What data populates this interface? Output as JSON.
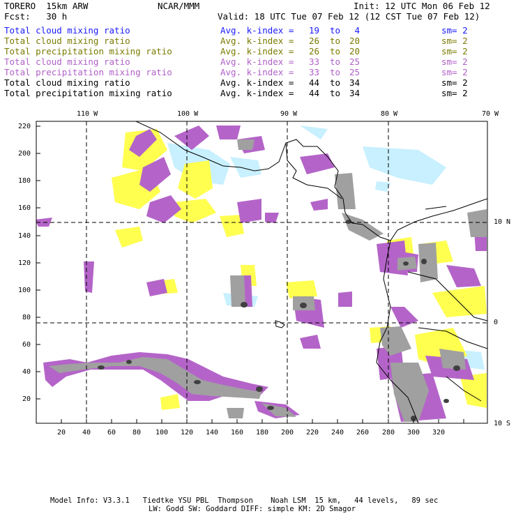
{
  "header": {
    "model": "TORERO  15km ARW",
    "org": "NCAR/MMM",
    "init": "Init: 12 UTC Mon 06 Feb 12",
    "fcst": "Fcst:   30 h",
    "valid": "Valid: 18 UTC Tue 07 Feb 12 (12 CST Tue 07 Feb 12)"
  },
  "legend": [
    {
      "field": "Total cloud mixing ratio",
      "stat": "Avg. k-index = ",
      "k1": "19",
      "to": "to",
      "k2": " 4",
      "sm": "sm= 2",
      "color": "#1a1aff"
    },
    {
      "field": "Total cloud mixing ratio",
      "stat": "Avg. k-index = ",
      "k1": "26",
      "to": "to",
      "k2": "20",
      "sm": "sm= 2",
      "color": "#7a7a00"
    },
    {
      "field": "Total precipitation mixing ratio",
      "stat": "Avg. k-index = ",
      "k1": "26",
      "to": "to",
      "k2": "20",
      "sm": "sm= 2",
      "color": "#7a7a00"
    },
    {
      "field": "Total cloud mixing ratio",
      "stat": "Avg. k-index = ",
      "k1": "33",
      "to": "to",
      "k2": "25",
      "sm": "sm= 2",
      "color": "#b060c8"
    },
    {
      "field": "Total precipitation mixing ratio",
      "stat": "Avg. k-index = ",
      "k1": "33",
      "to": "to",
      "k2": "25",
      "sm": "sm= 2",
      "color": "#b060c8"
    },
    {
      "field": "Total cloud mixing ratio",
      "stat": "Avg. k-index = ",
      "k1": "44",
      "to": "to",
      "k2": "34",
      "sm": "sm= 2",
      "color": "#000000"
    },
    {
      "field": "Total precipitation mixing ratio",
      "stat": "Avg. k-index = ",
      "k1": "44",
      "to": "to",
      "k2": "34",
      "sm": "sm= 2",
      "color": "#000000"
    }
  ],
  "axes": {
    "lon_labels": [
      "110 W",
      "100 W",
      "90 W",
      "80 W",
      "70 W"
    ],
    "lat_labels": [
      "10 N",
      "0",
      "10 S"
    ],
    "x_ticks": [
      "20",
      "40",
      "60",
      "80",
      "100",
      "120",
      "140",
      "160",
      "180",
      "200",
      "220",
      "240",
      "260",
      "280",
      "300",
      "320"
    ],
    "y_ticks": [
      "220",
      "200",
      "180",
      "160",
      "140",
      "120",
      "100",
      "80",
      "60",
      "40",
      "20"
    ]
  },
  "colors": {
    "cyan": "#c8f0ff",
    "yellow": "#ffff50",
    "violet": "#b464c8",
    "gray": "#a0a0a0",
    "dark": "#404040"
  },
  "footer": {
    "line1": "Model Info: V3.3.1   Tiedtke YSU PBL  Thompson    Noah LSM  15 km,   44 levels,   89 sec",
    "line2": "LW: Godd SW: Goddard DIFF: simple KM: 2D Smagor"
  }
}
